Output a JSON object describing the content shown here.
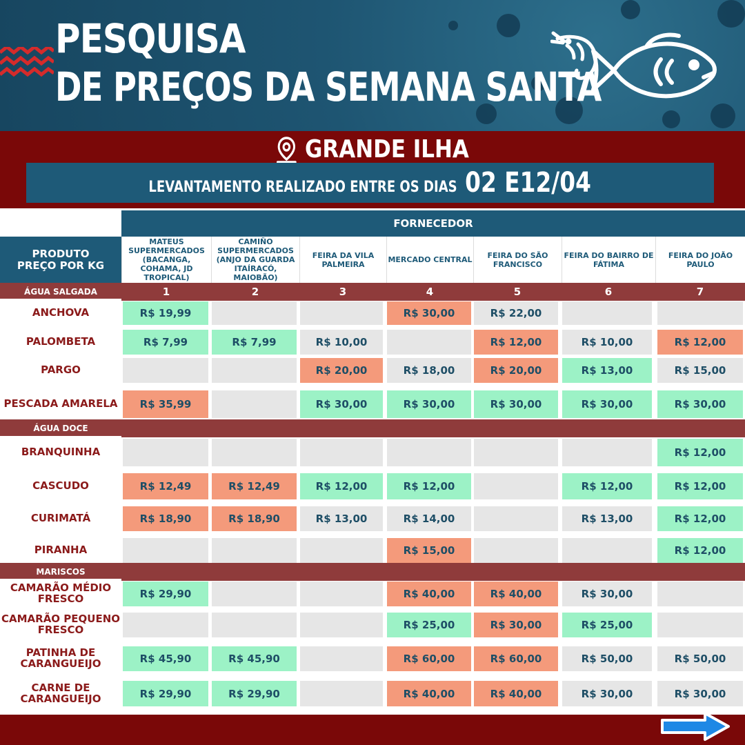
{
  "header": {
    "title_line1": "PESQUISA",
    "title_line2": "DE PREÇOS DA SEMANA SANTA",
    "region": "GRANDE ILHA",
    "dates_label": "LEVANTAMENTO REALIZADO ENTRE OS DIAS",
    "dates_value": "02 E12/04"
  },
  "colors": {
    "header_blue": "#1e5572",
    "dark_red": "#7a0808",
    "section_red": "#8f3b3b",
    "table_blue": "#1e5a78",
    "lowest_green": "#9cf2c6",
    "highest_orange": "#f49a7b",
    "empty_gray": "#e6e6e6",
    "product_text": "#8b1a1a"
  },
  "table": {
    "fornecedor_label": "FORNECEDOR",
    "produto_label_line1": "PRODUTO",
    "produto_label_line2": "PREÇO  POR KG",
    "suppliers": [
      {
        "number": "1",
        "name": "MATEUS SUPERMERCADOS (BACANGA, COHAMA, JD TROPICAL)"
      },
      {
        "number": "2",
        "name": "CAMIÑO SUPERMERCADOS (ANJO DA GUARDA ITAÍRACÓ, MAIOBÃO)"
      },
      {
        "number": "3",
        "name": "FEIRA DA VILA PALMEIRA"
      },
      {
        "number": "4",
        "name": "MERCADO CENTRAL"
      },
      {
        "number": "5",
        "name": "FEIRA DO SÃO FRANCISCO"
      },
      {
        "number": "6",
        "name": "FEIRA DO BAIRRO DE FÁTIMA"
      },
      {
        "number": "7",
        "name": "FEIRA DO JOÃO PAULO"
      }
    ],
    "sections": [
      {
        "label": "ÁGUA SALGADA",
        "rows": [
          {
            "product": "ANCHOVA",
            "prices": [
              {
                "v": "R$ 19,99",
                "c": "green"
              },
              {
                "v": "",
                "c": "none"
              },
              {
                "v": "",
                "c": "none"
              },
              {
                "v": "R$ 30,00",
                "c": "orange"
              },
              {
                "v": "R$ 22,00",
                "c": "none"
              },
              {
                "v": "",
                "c": "none"
              },
              {
                "v": "",
                "c": "none"
              }
            ]
          },
          {
            "product": "PALOMBETA",
            "prices": [
              {
                "v": "R$ 7,99",
                "c": "green"
              },
              {
                "v": "R$ 7,99",
                "c": "green"
              },
              {
                "v": "R$ 10,00",
                "c": "none"
              },
              {
                "v": "",
                "c": "none"
              },
              {
                "v": "R$ 12,00",
                "c": "orange"
              },
              {
                "v": "R$ 10,00",
                "c": "none"
              },
              {
                "v": "R$ 12,00",
                "c": "orange"
              }
            ]
          },
          {
            "product": "PARGO",
            "prices": [
              {
                "v": "",
                "c": "none"
              },
              {
                "v": "",
                "c": "none"
              },
              {
                "v": "R$ 20,00",
                "c": "orange"
              },
              {
                "v": "R$ 18,00",
                "c": "none"
              },
              {
                "v": "R$ 20,00",
                "c": "orange"
              },
              {
                "v": "R$ 13,00",
                "c": "green"
              },
              {
                "v": "R$ 15,00",
                "c": "none"
              }
            ]
          },
          {
            "product": "PESCADA AMARELA",
            "prices": [
              {
                "v": "R$ 35,99",
                "c": "orange"
              },
              {
                "v": "",
                "c": "none"
              },
              {
                "v": "R$ 30,00",
                "c": "green"
              },
              {
                "v": "R$ 30,00",
                "c": "green"
              },
              {
                "v": "R$ 30,00",
                "c": "green"
              },
              {
                "v": "R$ 30,00",
                "c": "green"
              },
              {
                "v": "R$ 30,00",
                "c": "green"
              }
            ]
          }
        ]
      },
      {
        "label": "ÁGUA DOCE",
        "rows": [
          {
            "product": "BRANQUINHA",
            "prices": [
              {
                "v": "",
                "c": "none"
              },
              {
                "v": "",
                "c": "none"
              },
              {
                "v": "",
                "c": "none"
              },
              {
                "v": "",
                "c": "none"
              },
              {
                "v": "",
                "c": "none"
              },
              {
                "v": "",
                "c": "none"
              },
              {
                "v": "R$ 12,00",
                "c": "green"
              }
            ]
          },
          {
            "product": "CASCUDO",
            "prices": [
              {
                "v": "R$ 12,49",
                "c": "orange"
              },
              {
                "v": "R$ 12,49",
                "c": "orange"
              },
              {
                "v": "R$ 12,00",
                "c": "green"
              },
              {
                "v": "R$ 12,00",
                "c": "green"
              },
              {
                "v": "",
                "c": "none"
              },
              {
                "v": "R$ 12,00",
                "c": "green"
              },
              {
                "v": "R$ 12,00",
                "c": "green"
              }
            ]
          },
          {
            "product": "CURIMATÁ",
            "prices": [
              {
                "v": "R$ 18,90",
                "c": "orange"
              },
              {
                "v": "R$ 18,90",
                "c": "orange"
              },
              {
                "v": "R$ 13,00",
                "c": "none"
              },
              {
                "v": "R$ 14,00",
                "c": "none"
              },
              {
                "v": "",
                "c": "none"
              },
              {
                "v": "R$ 13,00",
                "c": "none"
              },
              {
                "v": "R$ 12,00",
                "c": "green"
              }
            ]
          },
          {
            "product": "PIRANHA",
            "prices": [
              {
                "v": "",
                "c": "none"
              },
              {
                "v": "",
                "c": "none"
              },
              {
                "v": "",
                "c": "none"
              },
              {
                "v": "R$ 15,00",
                "c": "orange"
              },
              {
                "v": "",
                "c": "none"
              },
              {
                "v": "",
                "c": "none"
              },
              {
                "v": "R$ 12,00",
                "c": "green"
              }
            ]
          }
        ]
      },
      {
        "label": "MARISCOS",
        "rows": [
          {
            "product": "CAMARÃO MÉDIO FRESCO",
            "prices": [
              {
                "v": "R$ 29,90",
                "c": "green"
              },
              {
                "v": "",
                "c": "none"
              },
              {
                "v": "",
                "c": "none"
              },
              {
                "v": "R$ 40,00",
                "c": "orange"
              },
              {
                "v": "R$ 40,00",
                "c": "orange"
              },
              {
                "v": "R$ 30,00",
                "c": "none"
              },
              {
                "v": "",
                "c": "none"
              }
            ]
          },
          {
            "product": "CAMARÃO PEQUENO FRESCO",
            "prices": [
              {
                "v": "",
                "c": "none"
              },
              {
                "v": "",
                "c": "none"
              },
              {
                "v": "",
                "c": "none"
              },
              {
                "v": "R$ 25,00",
                "c": "green"
              },
              {
                "v": "R$ 30,00",
                "c": "orange"
              },
              {
                "v": "R$ 25,00",
                "c": "green"
              },
              {
                "v": "",
                "c": "none"
              }
            ]
          },
          {
            "product": "PATINHA DE CARANGUEIJO",
            "prices": [
              {
                "v": "R$ 45,90",
                "c": "green"
              },
              {
                "v": "R$ 45,90",
                "c": "green"
              },
              {
                "v": "",
                "c": "none"
              },
              {
                "v": "R$ 60,00",
                "c": "orange"
              },
              {
                "v": "R$ 60,00",
                "c": "orange"
              },
              {
                "v": "R$ 50,00",
                "c": "none"
              },
              {
                "v": "R$ 50,00",
                "c": "none"
              }
            ]
          },
          {
            "product": "CARNE DE CARANGUEIJO",
            "prices": [
              {
                "v": "R$ 29,90",
                "c": "green"
              },
              {
                "v": "R$ 29,90",
                "c": "green"
              },
              {
                "v": "",
                "c": "none"
              },
              {
                "v": "R$ 40,00",
                "c": "orange"
              },
              {
                "v": "R$ 40,00",
                "c": "orange"
              },
              {
                "v": "R$ 30,00",
                "c": "none"
              },
              {
                "v": "R$ 30,00",
                "c": "none"
              }
            ]
          }
        ]
      }
    ]
  },
  "icons": {
    "location": "location-pin-icon",
    "shrimp": "shrimp-icon",
    "fish": "fish-icon",
    "next": "arrow-right-icon",
    "decoration": "zigzag-icon"
  }
}
